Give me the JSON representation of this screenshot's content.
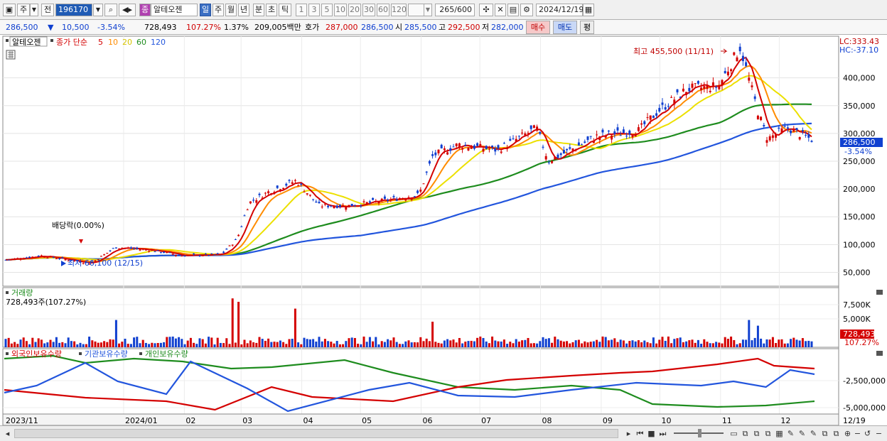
{
  "toolbar": {
    "market": "주",
    "prev": "전",
    "code": "196170",
    "stock_badge": "종",
    "stock_name": "알테오젠",
    "periods": [
      "일",
      "주",
      "월",
      "년",
      "분",
      "초",
      "틱"
    ],
    "active_period": "일",
    "quick_counts": [
      "1",
      "3",
      "5",
      "10",
      "20",
      "30",
      "60",
      "120"
    ],
    "count_display": "265",
    "count_total": "/600",
    "date": "2024/12/19"
  },
  "quote": {
    "price": "286,500",
    "change_arrow": "▼",
    "change": "10,500",
    "change_pct": "-3.54%",
    "volume": "728,493",
    "vol_ratio": "107.27%",
    "turnover": "1.37%",
    "amount": "209,005백만",
    "bid_label": "호가",
    "ask_price": "287,000",
    "bid_price": "286,500",
    "open_label": "시",
    "open": "285,500",
    "high_label": "고",
    "high": "292,500",
    "low_label": "저",
    "low": "282,000",
    "buy_label": "매수",
    "sell_label": "매도",
    "eval_label": "평"
  },
  "legend": {
    "name": "알테오젠",
    "type": "종가 단순",
    "ma": [
      "5",
      "10",
      "20",
      "60",
      "120"
    ],
    "ma_colors": [
      "#d40000",
      "#ff8c00",
      "#e8d800",
      "#1e8c1e",
      "#2255dd"
    ]
  },
  "annotations": {
    "max": "최고 455,500 (11/11)",
    "min": "최저 66,100 (12/15)",
    "dividend": "배당락(0.00%)",
    "lc": "LC:333.43",
    "hc": "HC:-37.10",
    "price_tag": "286,500",
    "price_tag_pct": "-3.54%"
  },
  "volume_panel": {
    "title": "거래량",
    "current": "728,493주(107.27%)",
    "tag": "728,493",
    "tag_pct": "107.27%"
  },
  "holdings_panel": {
    "legend": [
      "외국인보유수량",
      "기관보유수량",
      "개인보유수량"
    ],
    "colors": [
      "#d40000",
      "#2255dd",
      "#1e8c1e"
    ]
  },
  "chart_data": [
    {
      "type": "candlestick",
      "title": "알테오젠",
      "y_ticks": [
        "400,000",
        "350,000",
        "300,000",
        "250,000",
        "200,000",
        "150,000",
        "100,000",
        "50,000"
      ],
      "ylim": [
        25000,
        475000
      ],
      "x_ticks": [
        "2023/11",
        "2024/01",
        "02",
        "03",
        "04",
        "05",
        "06",
        "07",
        "08",
        "09",
        "10",
        "11",
        "12",
        "12/19"
      ],
      "close_points": [
        [
          "2023-11-01",
          72000
        ],
        [
          "2023-11-20",
          80000
        ],
        [
          "2023-12-15",
          66100
        ],
        [
          "2023-12-28",
          95000
        ],
        [
          "2024-01-15",
          90000
        ],
        [
          "2024-01-31",
          80000
        ],
        [
          "2024-02-20",
          82000
        ],
        [
          "2024-02-28",
          110000
        ],
        [
          "2024-03-05",
          175000
        ],
        [
          "2024-03-15",
          195000
        ],
        [
          "2024-03-29",
          215000
        ],
        [
          "2024-04-10",
          170000
        ],
        [
          "2024-04-25",
          170000
        ],
        [
          "2024-05-15",
          180000
        ],
        [
          "2024-05-31",
          190000
        ],
        [
          "2024-06-07",
          260000
        ],
        [
          "2024-06-20",
          280000
        ],
        [
          "2024-07-10",
          270000
        ],
        [
          "2024-07-30",
          310000
        ],
        [
          "2024-08-05",
          250000
        ],
        [
          "2024-08-30",
          295000
        ],
        [
          "2024-09-20",
          305000
        ],
        [
          "2024-09-30",
          340000
        ],
        [
          "2024-10-15",
          380000
        ],
        [
          "2024-10-31",
          385000
        ],
        [
          "2024-11-11",
          455500
        ],
        [
          "2024-11-20",
          340000
        ],
        [
          "2024-11-25",
          290000
        ],
        [
          "2024-12-05",
          310000
        ],
        [
          "2024-12-19",
          286500
        ]
      ],
      "moving_averages": {
        "120": [
          [
            0,
            65000
          ],
          [
            0.55,
            150000
          ],
          [
            0.82,
            250000
          ],
          [
            0.93,
            320000
          ],
          [
            1,
            322000
          ]
        ],
        "60": [
          [
            0,
            70000
          ],
          [
            0.35,
            125000
          ],
          [
            0.6,
            210000
          ],
          [
            0.8,
            290000
          ],
          [
            0.93,
            358000
          ],
          [
            1,
            355000
          ]
        ]
      },
      "max": {
        "date": "11/11",
        "value": 455500
      },
      "min": {
        "date": "12/15",
        "value": 66100
      },
      "last": 286500
    },
    {
      "type": "bar",
      "title": "거래량",
      "y_ticks": [
        "7,500K",
        "5,000K"
      ],
      "last": 728493
    },
    {
      "type": "line",
      "series": [
        {
          "name": "외국인보유수량"
        },
        {
          "name": "기관보유수량"
        },
        {
          "name": "개인보유수량"
        }
      ],
      "y_ticks": [
        "-2,500,000",
        "-5,000,000"
      ]
    }
  ]
}
